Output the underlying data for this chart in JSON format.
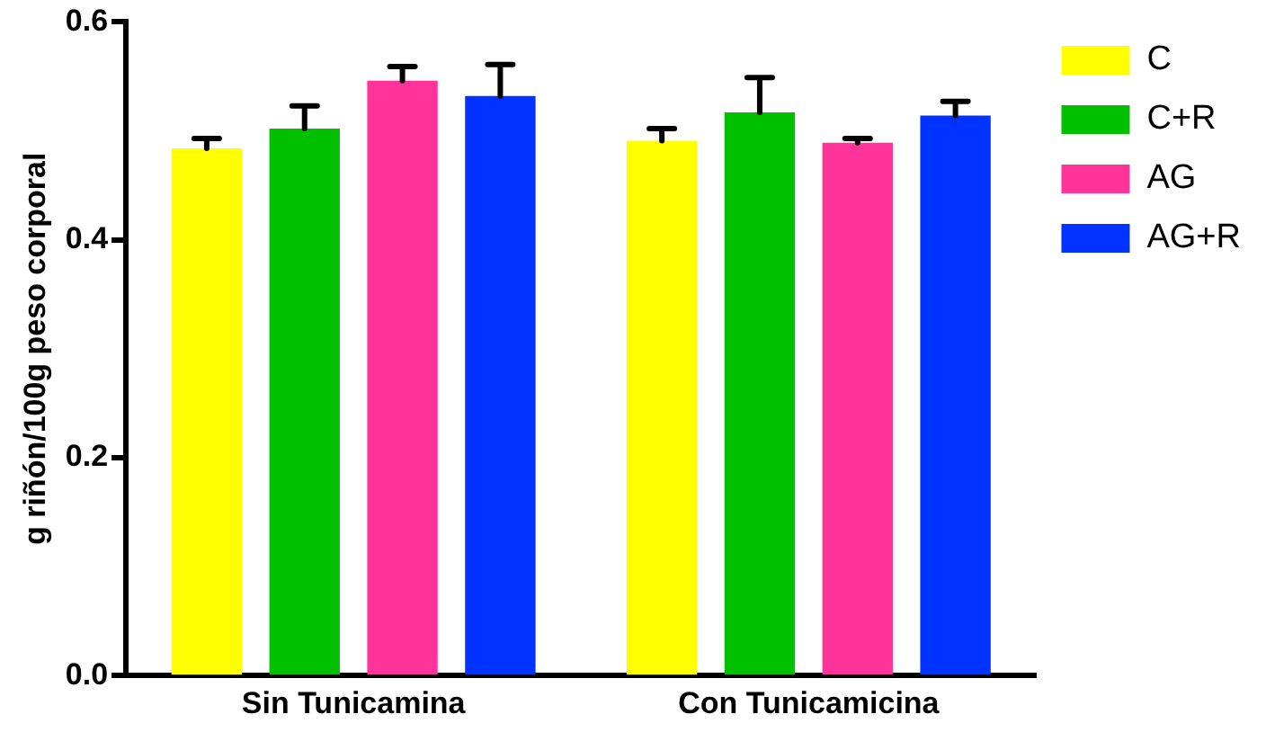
{
  "chart_data": {
    "type": "bar",
    "ylabel": "g riñón/100g peso corporal",
    "categories": [
      "Sin Tunicamina",
      "Con Tunicamicina"
    ],
    "series": [
      {
        "name": "C",
        "color": "#ffff00",
        "values": [
          0.484,
          0.491
        ],
        "errors": [
          0.009,
          0.011
        ]
      },
      {
        "name": "C+R",
        "color": "#00c000",
        "values": [
          0.502,
          0.517
        ],
        "errors": [
          0.021,
          0.032
        ]
      },
      {
        "name": "AG",
        "color": "#ff3399",
        "values": [
          0.546,
          0.489
        ],
        "errors": [
          0.013,
          0.004
        ]
      },
      {
        "name": "AG+R",
        "color": "#0033ff",
        "values": [
          0.532,
          0.514
        ],
        "errors": [
          0.029,
          0.013
        ]
      }
    ],
    "ylim": [
      0,
      0.6
    ],
    "yticks": [
      {
        "value": 0,
        "label": "0.0"
      },
      {
        "value": 0.2,
        "label": "0.2"
      },
      {
        "value": 0.4,
        "label": "0.4"
      },
      {
        "value": 0.6,
        "label": "0.6"
      }
    ],
    "grid": false,
    "legend": "top right"
  }
}
